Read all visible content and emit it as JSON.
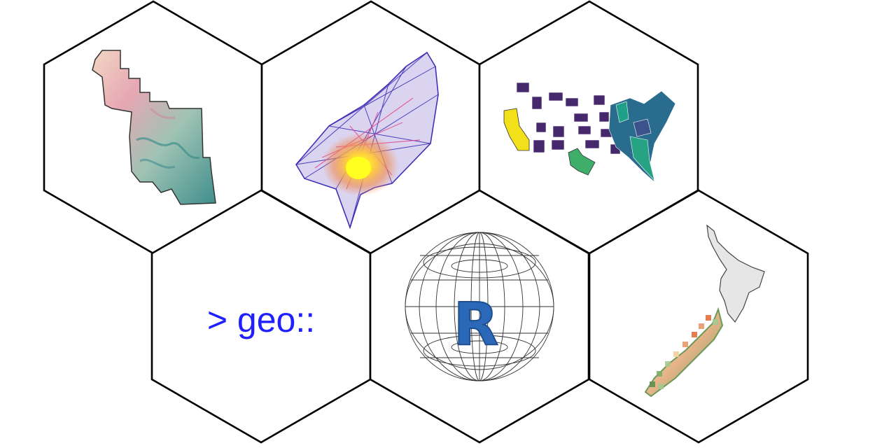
{
  "logo": {
    "prompt_text": "> geo::",
    "r_letter": "R",
    "colors": {
      "prompt": "#1f1fff",
      "r_letter": "#2b68b8",
      "hex_stroke": "#000000",
      "hex_fill": "#ffffff"
    }
  },
  "tiles": [
    {
      "name": "elevation-map-tile",
      "icon": "terrain-raster-icon"
    },
    {
      "name": "network-graph-tile",
      "icon": "network-graph-icon"
    },
    {
      "name": "us-choropleth-tile",
      "icon": "us-states-map-icon"
    },
    {
      "name": "geo-prompt-tile",
      "icon": "r-console-prompt"
    },
    {
      "name": "globe-r-tile",
      "icon": "globe-r-icon"
    },
    {
      "name": "new-zealand-tile",
      "icon": "new-zealand-map-icon"
    }
  ]
}
